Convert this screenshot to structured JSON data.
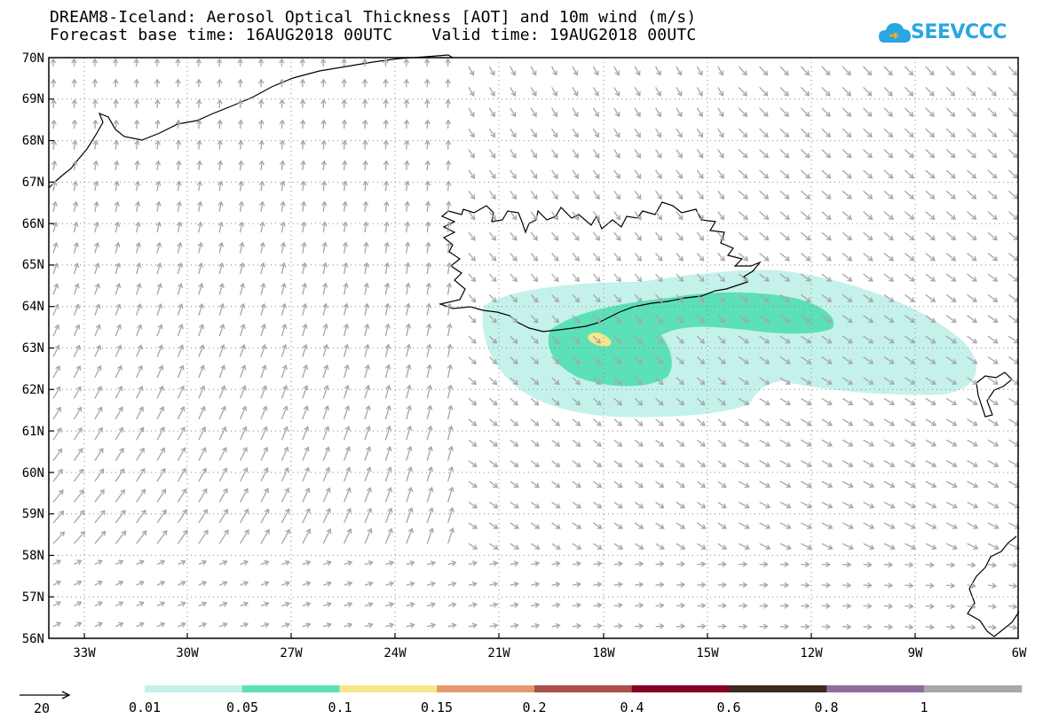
{
  "title": {
    "line1": "DREAM8-Iceland: Aerosol Optical Thickness [AOT] and 10m wind (m/s)",
    "line2": "Forecast base time: 16AUG2018 00UTC    Valid time: 19AUG2018 00UTC"
  },
  "logo": {
    "text": "SEEVCCC"
  },
  "map": {
    "lon_range": [
      -34.5,
      -6
    ],
    "lat_range": [
      56,
      70
    ],
    "lat_ticks": [
      "56N",
      "57N",
      "58N",
      "59N",
      "60N",
      "61N",
      "62N",
      "63N",
      "64N",
      "65N",
      "66N",
      "67N",
      "68N",
      "69N",
      "70N"
    ],
    "lon_ticks": [
      "33W",
      "30W",
      "27W",
      "24W",
      "21W",
      "18W",
      "15W",
      "12W",
      "9W",
      "6W"
    ],
    "grid": true,
    "colors": {
      "wind_arrow": "#a6a6a6",
      "coastline": "#000000",
      "grid": "#888888"
    }
  },
  "wind_reference": {
    "label": "20"
  },
  "colorbar": {
    "labels": [
      "0.01",
      "0.05",
      "0.1",
      "0.15",
      "0.2",
      "0.4",
      "0.6",
      "0.8",
      "1"
    ],
    "colors": [
      "#c4f2ea",
      "#5ce0b7",
      "#f7e68a",
      "#e59a6e",
      "#ab4f4b",
      "#850026",
      "#3d2b1f",
      "#8e6d9c",
      "#a8a8a8"
    ]
  }
}
